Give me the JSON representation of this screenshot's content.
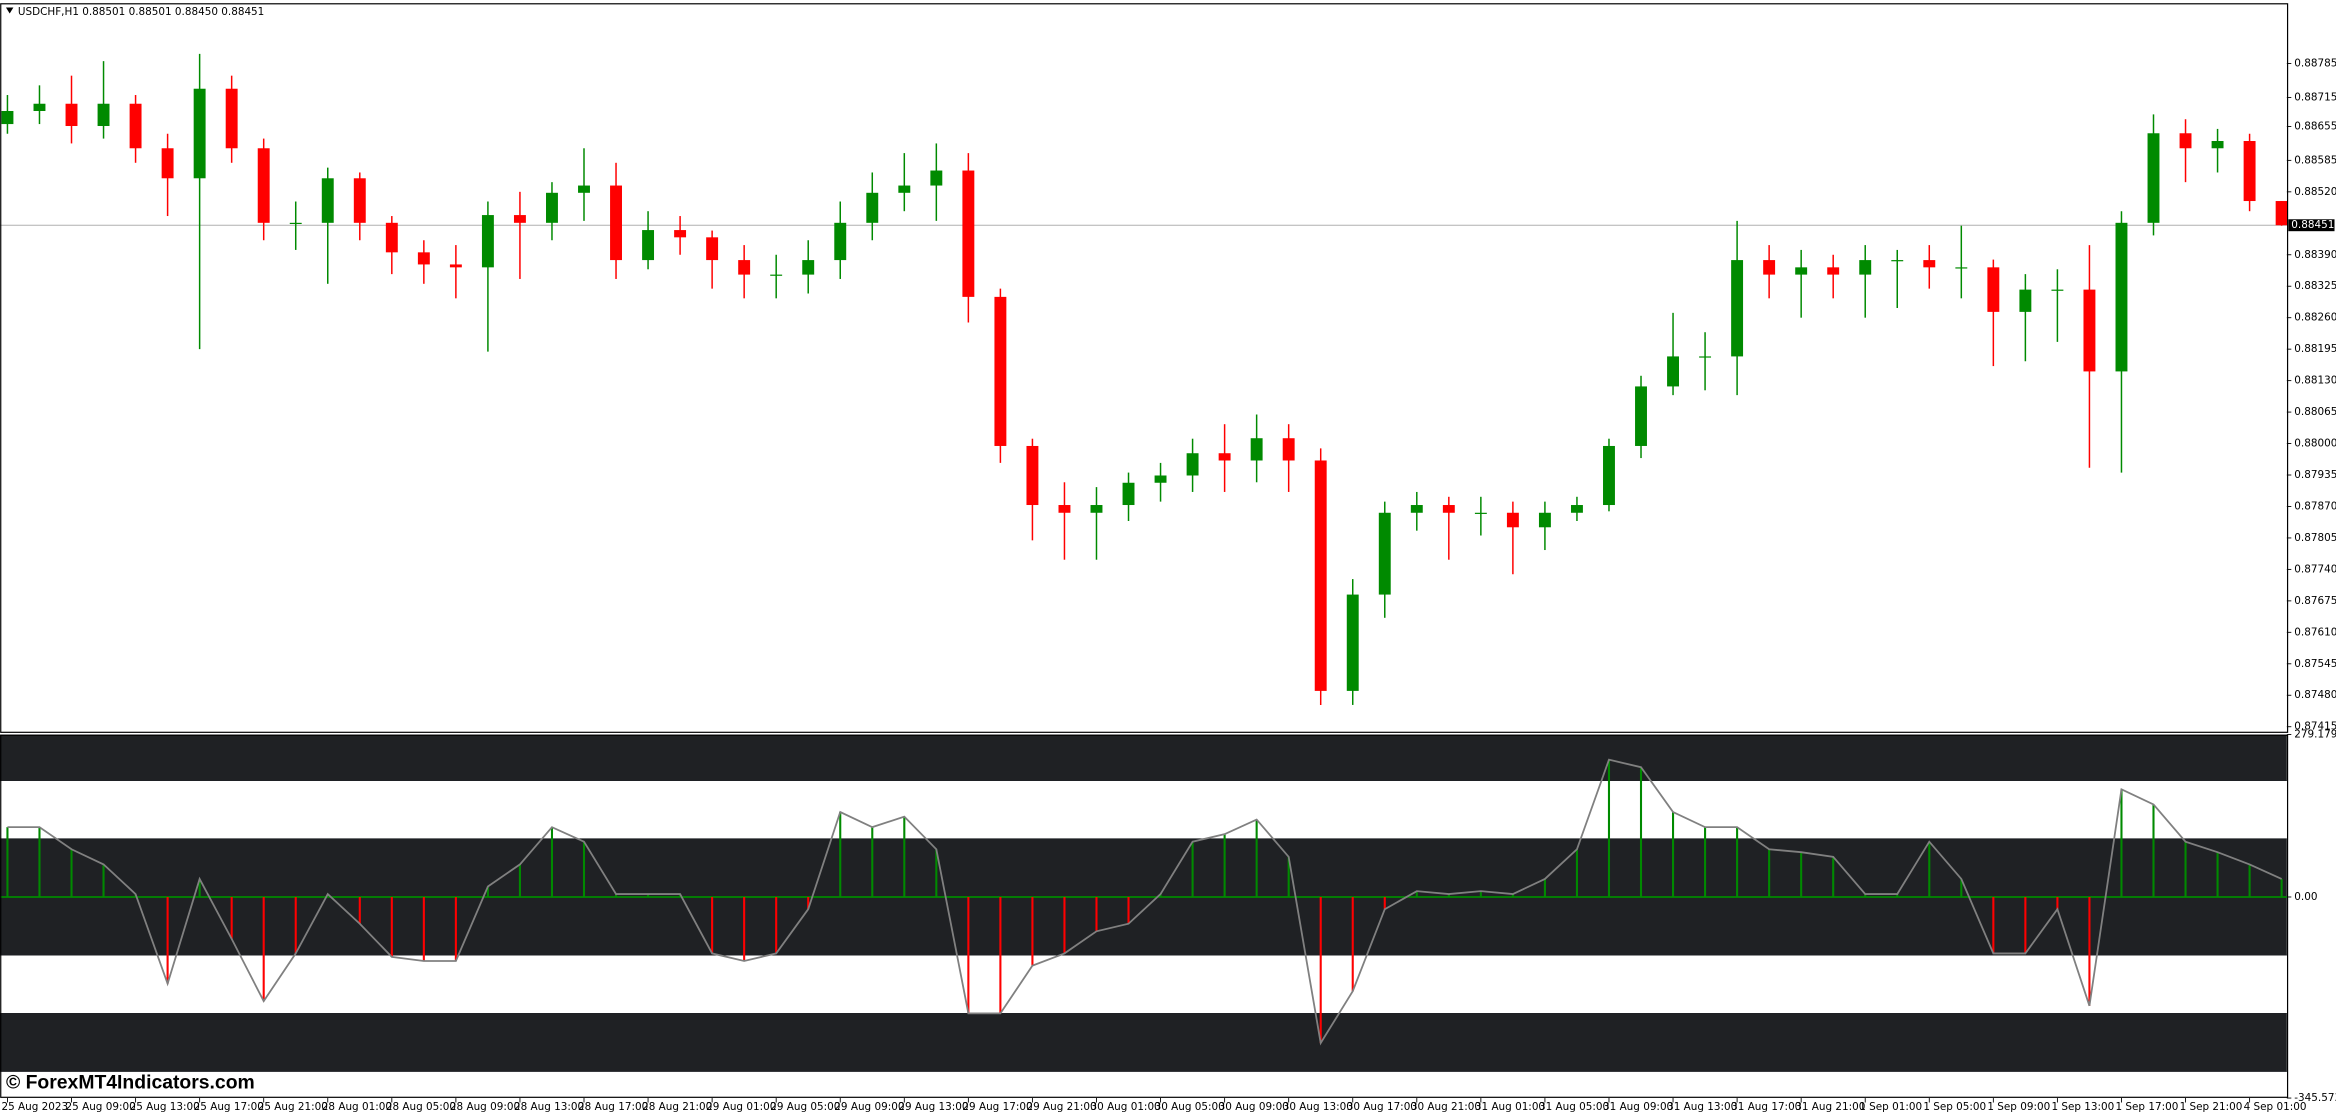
{
  "chart_data": [
    {
      "type": "candlestick",
      "title": "USDCHF,H1  0.88501 0.88501 0.88450 0.88451",
      "up_color": "#008a00",
      "down_color": "#ff0000",
      "current_price": 0.88451,
      "categories": [
        "25 Aug 2023",
        null,
        "25 Aug 09:00",
        null,
        "25 Aug 13:00",
        null,
        "25 Aug 17:00",
        null,
        "25 Aug 21:00",
        null,
        "28 Aug 01:00",
        null,
        "28 Aug 05:00",
        null,
        "28 Aug 09:00",
        null,
        "28 Aug 13:00",
        null,
        "28 Aug 17:00",
        null,
        "28 Aug 21:00",
        null,
        "29 Aug 01:00",
        null,
        "29 Aug 05:00",
        null,
        "29 Aug 09:00",
        null,
        "29 Aug 13:00",
        null,
        "29 Aug 17:00",
        null,
        "29 Aug 21:00",
        null,
        "30 Aug 01:00",
        null,
        "30 Aug 05:00",
        null,
        "30 Aug 09:00",
        null,
        "30 Aug 13:00",
        null,
        "30 Aug 17:00",
        null,
        "30 Aug 21:00",
        null,
        "31 Aug 01:00",
        null,
        "31 Aug 05:00",
        null,
        "31 Aug 09:00",
        null,
        "31 Aug 13:00",
        null,
        "31 Aug 17:00",
        null,
        "31 Aug 21:00",
        null,
        "1 Sep 01:00",
        null,
        "1 Sep 05:00",
        null,
        "1 Sep 09:00",
        null,
        "1 Sep 13:00",
        null,
        "1 Sep 17:00",
        null,
        "1 Sep 21:00",
        null,
        "4 Sep 01:00",
        null
      ],
      "open": [
        0.8866,
        0.88687,
        0.88702,
        0.88656,
        0.88702,
        0.8861,
        0.88548,
        0.88733,
        0.8861,
        0.88456,
        0.88456,
        0.88548,
        0.88456,
        0.88395,
        0.8837,
        0.88364,
        0.88472,
        0.88456,
        0.88518,
        0.88533,
        0.88379,
        0.88441,
        0.88426,
        0.88379,
        0.88349,
        0.88349,
        0.88379,
        0.88456,
        0.88518,
        0.88533,
        0.88564,
        0.88303,
        0.87995,
        0.87873,
        0.87857,
        0.87873,
        0.87919,
        0.87934,
        0.8798,
        0.87965,
        0.88011,
        0.87965,
        0.87489,
        0.87688,
        0.87857,
        0.87873,
        0.87857,
        0.87857,
        0.87827,
        0.87857,
        0.87873,
        0.87995,
        0.88118,
        0.8818,
        0.8818,
        0.88379,
        0.88349,
        0.88364,
        0.88349,
        0.88379,
        0.88379,
        0.88364,
        0.88364,
        0.88272,
        0.88318,
        0.88318,
        0.88149,
        0.88456,
        0.88641,
        0.8861,
        0.88625,
        0.88501
      ],
      "high": [
        0.8872,
        0.8874,
        0.8876,
        0.8879,
        0.8872,
        0.8864,
        0.88805,
        0.8876,
        0.8863,
        0.885,
        0.8857,
        0.8856,
        0.8847,
        0.8842,
        0.8841,
        0.885,
        0.8852,
        0.8854,
        0.8861,
        0.8858,
        0.8848,
        0.8847,
        0.8844,
        0.8841,
        0.8839,
        0.8842,
        0.885,
        0.8856,
        0.886,
        0.8862,
        0.886,
        0.8832,
        0.8801,
        0.8792,
        0.8791,
        0.8794,
        0.8796,
        0.8801,
        0.8804,
        0.8806,
        0.8804,
        0.8799,
        0.8772,
        0.8788,
        0.879,
        0.8789,
        0.8789,
        0.8788,
        0.8788,
        0.8789,
        0.8801,
        0.8814,
        0.8827,
        0.8823,
        0.8846,
        0.8841,
        0.884,
        0.8839,
        0.8841,
        0.884,
        0.8841,
        0.8845,
        0.8838,
        0.8835,
        0.8836,
        0.8841,
        0.8848,
        0.8868,
        0.8867,
        0.8865,
        0.8864,
        0.88501
      ],
      "low": [
        0.8864,
        0.8866,
        0.8862,
        0.8863,
        0.8858,
        0.8847,
        0.88195,
        0.8858,
        0.8842,
        0.884,
        0.8833,
        0.8842,
        0.8835,
        0.8833,
        0.883,
        0.8819,
        0.8834,
        0.8842,
        0.8846,
        0.8834,
        0.8836,
        0.8839,
        0.8832,
        0.883,
        0.883,
        0.8831,
        0.8834,
        0.8842,
        0.8848,
        0.8846,
        0.8825,
        0.8796,
        0.878,
        0.8776,
        0.8776,
        0.8784,
        0.8788,
        0.879,
        0.879,
        0.8792,
        0.879,
        0.8746,
        0.8746,
        0.8764,
        0.8782,
        0.8776,
        0.8781,
        0.8773,
        0.8778,
        0.8784,
        0.8786,
        0.8797,
        0.881,
        0.8811,
        0.881,
        0.883,
        0.8826,
        0.883,
        0.8826,
        0.8828,
        0.8832,
        0.883,
        0.8816,
        0.8817,
        0.8821,
        0.8795,
        0.8794,
        0.8843,
        0.8854,
        0.8856,
        0.8848,
        0.8845
      ],
      "close": [
        0.88687,
        0.88702,
        0.88656,
        0.88702,
        0.8861,
        0.88548,
        0.88733,
        0.8861,
        0.88456,
        0.88456,
        0.88548,
        0.88456,
        0.88395,
        0.8837,
        0.88364,
        0.88472,
        0.88456,
        0.88518,
        0.88533,
        0.88379,
        0.88441,
        0.88426,
        0.88379,
        0.88349,
        0.88349,
        0.88379,
        0.88456,
        0.88518,
        0.88533,
        0.88564,
        0.88303,
        0.87995,
        0.87873,
        0.87857,
        0.87873,
        0.87919,
        0.87934,
        0.8798,
        0.87965,
        0.88011,
        0.87965,
        0.87489,
        0.87688,
        0.87857,
        0.87873,
        0.87857,
        0.87857,
        0.87827,
        0.87857,
        0.87873,
        0.87995,
        0.88118,
        0.8818,
        0.8818,
        0.88379,
        0.88349,
        0.88364,
        0.88349,
        0.88379,
        0.88379,
        0.88364,
        0.88364,
        0.88272,
        0.88318,
        0.88318,
        0.88149,
        0.88456,
        0.88641,
        0.8861,
        0.88625,
        0.88501,
        0.88451
      ],
      "ylim": [
        0.87405,
        0.8891
      ],
      "yticks": [
        {
          "value": 0.88785,
          "label": "0.88785"
        },
        {
          "value": 0.88715,
          "label": "0.88715"
        },
        {
          "value": 0.88655,
          "label": "0.88655"
        },
        {
          "value": 0.88585,
          "label": "0.88585"
        },
        {
          "value": 0.8852,
          "label": "0.88520"
        },
        {
          "value": 0.8839,
          "label": "0.88390"
        },
        {
          "value": 0.88325,
          "label": "0.88325"
        },
        {
          "value": 0.8826,
          "label": "0.88260"
        },
        {
          "value": 0.88195,
          "label": "0.88195"
        },
        {
          "value": 0.8813,
          "label": "0.88130"
        },
        {
          "value": 0.88065,
          "label": "0.88065"
        },
        {
          "value": 0.88,
          "label": "0.88000"
        },
        {
          "value": 0.87935,
          "label": "0.87935"
        },
        {
          "value": 0.8787,
          "label": "0.87870"
        },
        {
          "value": 0.87805,
          "label": "0.87805"
        },
        {
          "value": 0.8774,
          "label": "0.87740"
        },
        {
          "value": 0.87675,
          "label": "0.87675"
        },
        {
          "value": 0.8761,
          "label": "0.87610"
        },
        {
          "value": 0.87545,
          "label": "0.87545"
        },
        {
          "value": 0.8748,
          "label": "0.87480"
        },
        {
          "value": 0.87415,
          "label": "0.87415"
        }
      ]
    },
    {
      "type": "line",
      "color": "#808080",
      "up_color": "#008a00",
      "down_color": "#ff0000",
      "levels": [
        200,
        100,
        -100,
        -200,
        -300
      ],
      "values": [
        120,
        120,
        82,
        56,
        5,
        -149,
        31,
        -72,
        -179,
        -97,
        5,
        -46,
        -103,
        -110,
        -110,
        18,
        56,
        120,
        95,
        5,
        5,
        5,
        -97,
        -110,
        -97,
        -21,
        146,
        120,
        138,
        82,
        -200,
        -200,
        -118,
        -97,
        -59,
        -46,
        5,
        95,
        108,
        133,
        69,
        -251,
        -162,
        -21,
        10,
        5,
        10,
        5,
        31,
        82,
        236,
        223,
        146,
        120,
        120,
        82,
        77,
        69,
        5,
        5,
        95,
        31,
        -97,
        -97,
        -21,
        -187,
        185,
        159,
        95,
        77,
        56,
        31
      ],
      "ylim": [
        -345.5735,
        279.1794
      ],
      "yticks": [
        279.1794,
        {
          "value": 0,
          "label": "0.00"
        },
        -345.5735
      ]
    }
  ],
  "watermark": "© ForexMT4Indicators.com"
}
